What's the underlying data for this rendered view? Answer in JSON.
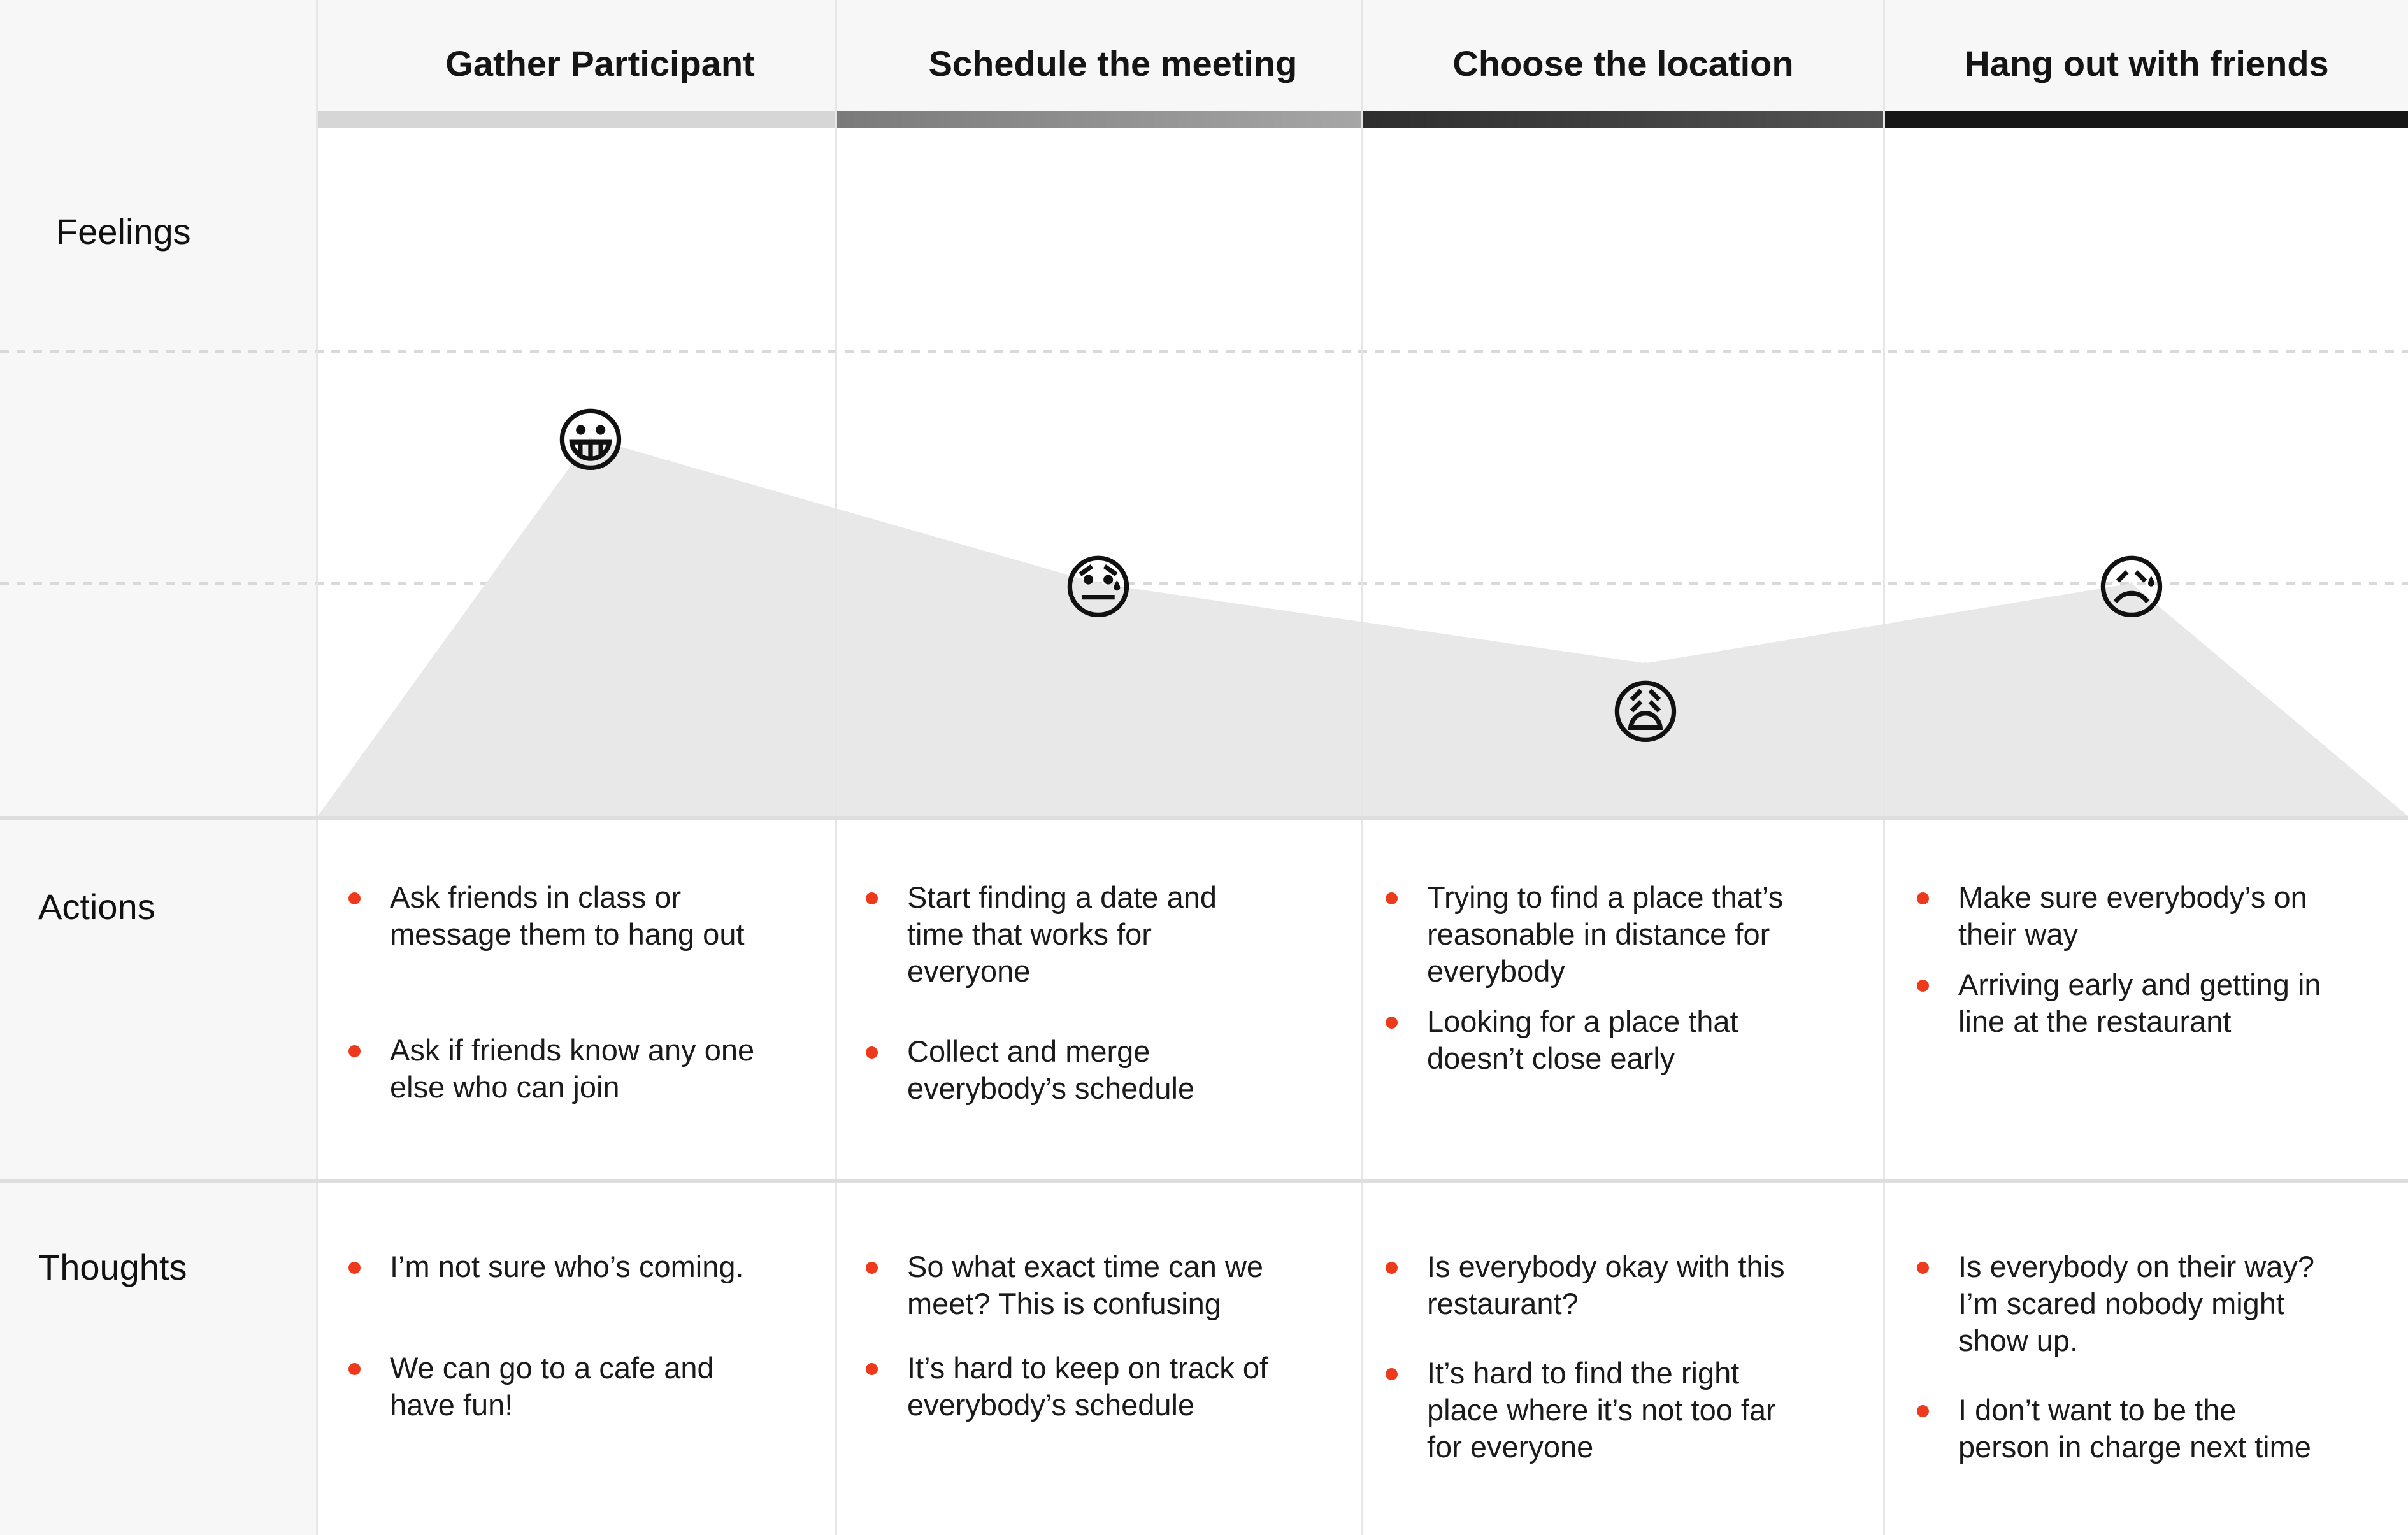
{
  "row_labels": {
    "feelings": "Feelings",
    "actions": "Actions",
    "thoughts": "Thoughts"
  },
  "stages": [
    {
      "title": "Gather Participant",
      "bar_color": "#d6d6d6",
      "feeling": "grinning-face",
      "feeling_glyph": "😀",
      "actions": [
        "Ask friends in class or\nmessage them to hang out",
        "Ask if friends know any one\nelse who can join"
      ],
      "thoughts": [
        "I’m not sure who’s coming.",
        "We can go to a cafe and\nhave fun!"
      ]
    },
    {
      "title": "Schedule the meeting",
      "bar_color": "linear-gradient(90deg, #7a7a7a, #a6a6a6)",
      "feeling": "downcast-face-with-sweat",
      "feeling_glyph": "😓",
      "actions": [
        "Start finding a date and\ntime that works for\neveryone",
        "Collect and merge\neverybody’s schedule"
      ],
      "thoughts": [
        "So what exact time can we\nmeet? This is confusing",
        "It’s hard to keep on track of\neverybody’s schedule"
      ]
    },
    {
      "title": "Choose the location",
      "bar_color": "linear-gradient(90deg, #2e2e2e, #545454)",
      "feeling": "weary-face",
      "feeling_glyph": "😩",
      "actions": [
        "Trying to find a place that’s\nreasonable in distance for\neverybody",
        "Looking for a place that\ndoesn’t close early"
      ],
      "thoughts": [
        "Is everybody okay with this\nrestaurant?",
        "It’s hard to find the right\nplace where it’s not too far\nfor everyone"
      ]
    },
    {
      "title": "Hang out with friends",
      "bar_color": "#171717",
      "feeling": "sad-but-relieved-face",
      "feeling_glyph": "😥",
      "actions": [
        "Make sure everybody’s on\ntheir way",
        "Arriving early and getting in\nline at the restaurant"
      ],
      "thoughts": [
        "Is everybody on their way?\nI’m scared nobody might\nshow up.",
        "I don’t want to be the\nperson in charge next time"
      ]
    }
  ],
  "chart_data": {
    "type": "area",
    "categories": [
      "Gather Participant",
      "Schedule the meeting",
      "Choose the location",
      "Hang out with friends"
    ],
    "values": [
      4,
      3,
      2.45,
      3
    ],
    "ylim": [
      2,
      4
    ],
    "grid": true,
    "fill_color": "#e8e8e8",
    "grid_color": "#d9d9d9"
  }
}
